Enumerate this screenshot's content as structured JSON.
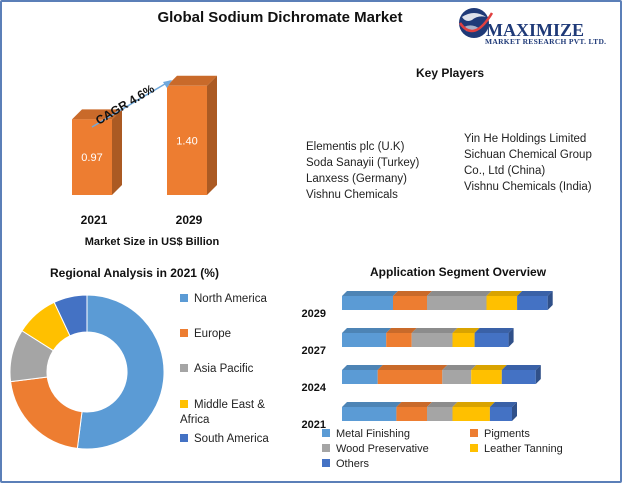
{
  "title": "Global Sodium Dichromate Market",
  "logo": {
    "line1": "MAXIMIZE",
    "line2": "MARKET RESEARCH PVT. LTD."
  },
  "key_players": {
    "title": "Key Players",
    "col1": [
      "Elementis plc (U.K)",
      "Soda Sanayii (Turkey)",
      "Lanxess (Germany)",
      "Vishnu Chemicals"
    ],
    "col2": [
      "Yin He Holdings Limited",
      "Sichuan Chemical Group",
      "Co., Ltd (China)",
      "Vishnu Chemicals (India)"
    ]
  },
  "colors": {
    "blue": "#5b9bd5",
    "orange": "#ed7d31",
    "gray": "#a5a5a5",
    "yellow": "#ffc000",
    "darkblue": "#4472c4",
    "frame": "#5b7fb8",
    "cagr_arrow": "#6fa8dc"
  },
  "chart_data": [
    {
      "type": "bar",
      "categories": [
        "2021",
        "2029"
      ],
      "values": [
        0.97,
        1.4
      ],
      "value_labels": [
        "0.97",
        "1.40"
      ],
      "xlabel": "Market Size in US$ Billion",
      "annotation": "CAGR 4.6%"
    },
    {
      "type": "pie",
      "title": "Regional Analysis in 2021 (%)",
      "labels": [
        "North America",
        "Europe",
        "Asia Pacific",
        "Middle East & Africa",
        "South America"
      ],
      "values": [
        52,
        21,
        11,
        9,
        7
      ],
      "colors": [
        "#5b9bd5",
        "#ed7d31",
        "#a5a5a5",
        "#ffc000",
        "#4472c4"
      ]
    },
    {
      "type": "bar",
      "orientation": "horizontal",
      "stacked": true,
      "title": "Application Segment Overview",
      "categories": [
        "2029",
        "2027",
        "2024",
        "2021"
      ],
      "series": [
        {
          "name": "Metal Finishing",
          "color": "#5b9bd5",
          "values": [
            30,
            26,
            21,
            32
          ]
        },
        {
          "name": "Pigments",
          "color": "#ed7d31",
          "values": [
            20,
            15,
            38,
            18
          ]
        },
        {
          "name": "Wood Preservative",
          "color": "#a5a5a5",
          "values": [
            35,
            24,
            17,
            15
          ]
        },
        {
          "name": "Leather Tanning",
          "color": "#ffc000",
          "values": [
            18,
            13,
            18,
            22
          ]
        },
        {
          "name": "Others",
          "color": "#4472c4",
          "values": [
            18,
            20,
            20,
            13
          ]
        }
      ]
    }
  ]
}
